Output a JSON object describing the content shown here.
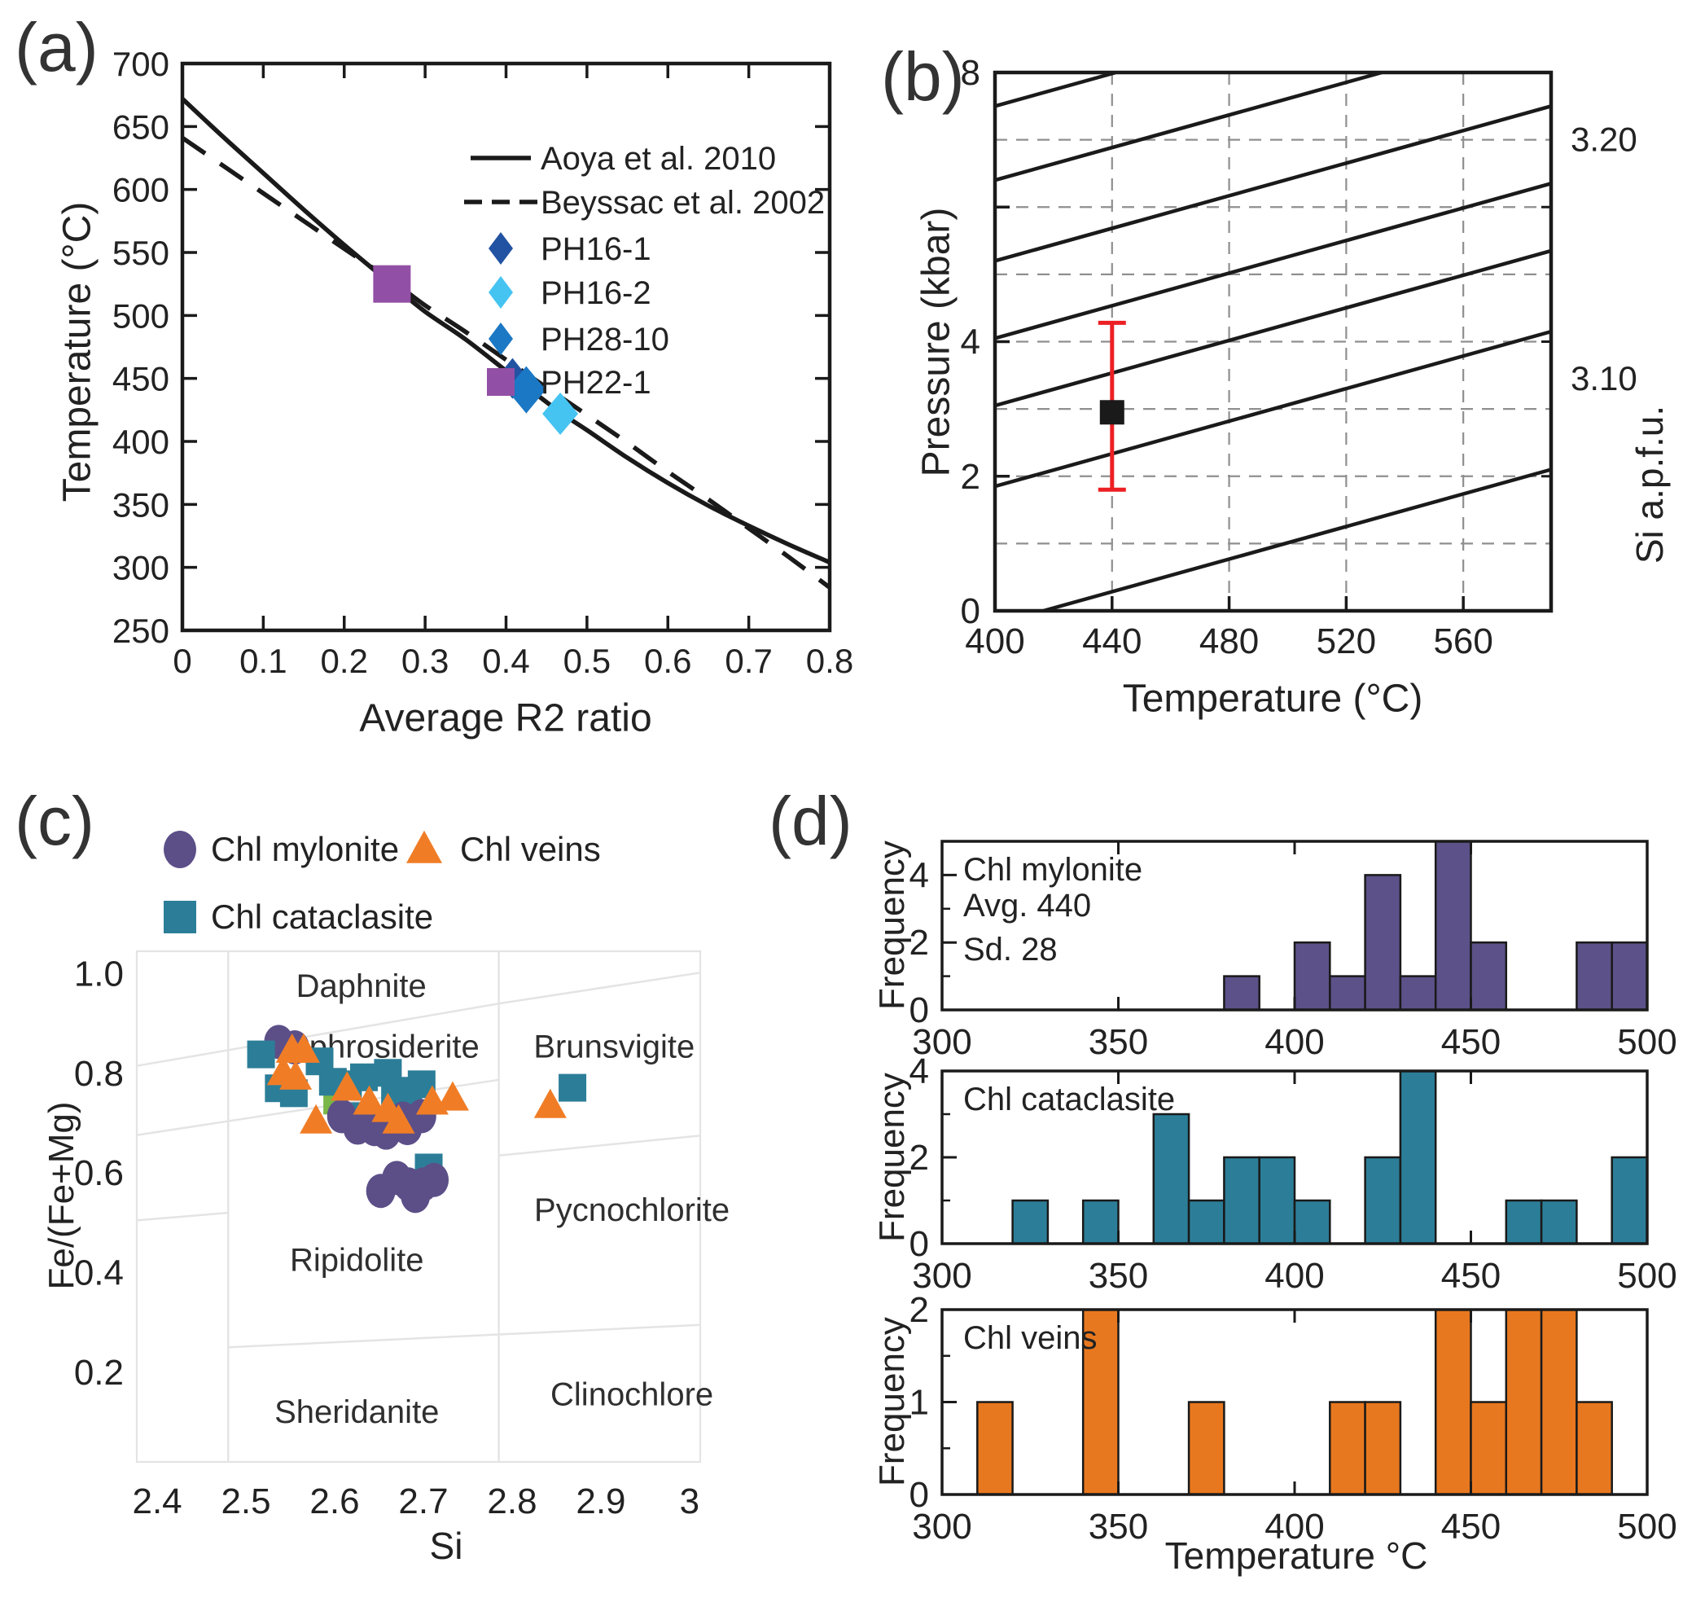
{
  "panel_tags": {
    "a": "(a)",
    "b": "(b)",
    "c": "(c)",
    "d": "(d)"
  },
  "colors": {
    "line_black": "#1a1a1a",
    "grid_gray": "#8f8f8f",
    "boundary_gray": "#e4e4e4",
    "error_red": "#ec2024",
    "mylonite_purple": "#5c4f88",
    "cataclasite_teal": "#2c7e98",
    "veins_orange": "#f07d26",
    "ph16_1_navy": "#2253a2",
    "ph16_2_cyan": "#45c4f2",
    "ph28_10_blue": "#1b78c5",
    "ph22_1_purple": "#9150a5"
  },
  "chart_data": [
    {
      "id": "a",
      "type": "line",
      "xlabel": "Average R2 ratio",
      "ylabel": "Temperature (°C)",
      "xlim": [
        0,
        0.8
      ],
      "ylim": [
        250,
        700
      ],
      "xticks": [
        0,
        0.1,
        0.2,
        0.3,
        0.4,
        0.5,
        0.6,
        0.7,
        0.8
      ],
      "yticks": [
        250,
        300,
        350,
        400,
        450,
        500,
        550,
        600,
        650,
        700
      ],
      "legend": [
        {
          "marker": "line-solid",
          "label": "Aoya et al. 2010"
        },
        {
          "marker": "line-dashed",
          "label": "Beyssac et al. 2002"
        },
        {
          "marker": "diamond",
          "label": "PH16-1",
          "color": "#2253a2"
        },
        {
          "marker": "diamond",
          "label": "PH16-2",
          "color": "#45c4f2"
        },
        {
          "marker": "diamond",
          "label": "PH28-10",
          "color": "#1b78c5"
        },
        {
          "marker": "square",
          "label": "PH22-1",
          "color": "#9150a5"
        }
      ],
      "series": [
        {
          "name": "Aoya et al. 2010",
          "style": "solid",
          "color": "#1a1a1a",
          "points": [
            [
              0,
              672
            ],
            [
              0.05,
              642
            ],
            [
              0.1,
              613
            ],
            [
              0.15,
              584
            ],
            [
              0.2,
              556
            ],
            [
              0.26,
              524
            ],
            [
              0.3,
              503
            ],
            [
              0.35,
              481
            ],
            [
              0.41,
              451
            ],
            [
              0.465,
              424
            ],
            [
              0.5,
              409
            ],
            [
              0.55,
              387
            ],
            [
              0.6,
              367
            ],
            [
              0.65,
              349
            ],
            [
              0.7,
              333
            ],
            [
              0.75,
              318
            ],
            [
              0.8,
              304
            ]
          ]
        },
        {
          "name": "Beyssac et al. 2002",
          "style": "dashed",
          "color": "#1a1a1a",
          "points": [
            [
              0,
              641
            ],
            [
              0.05,
              619
            ],
            [
              0.1,
              597
            ],
            [
              0.15,
              575
            ],
            [
              0.2,
              553
            ],
            [
              0.26,
              527
            ],
            [
              0.3,
              508
            ],
            [
              0.35,
              487
            ],
            [
              0.42,
              456
            ],
            [
              0.5,
              421
            ],
            [
              0.55,
              399
            ],
            [
              0.6,
              376
            ],
            [
              0.65,
              354
            ],
            [
              0.7,
              331
            ],
            [
              0.75,
              308
            ],
            [
              0.8,
              284
            ]
          ]
        }
      ],
      "points": [
        {
          "sample": "PH22-1",
          "marker": "square",
          "color": "#9150a5",
          "x": 0.259,
          "y": 525,
          "w": 46,
          "h": 46
        },
        {
          "sample": "PH16-1",
          "marker": "diamond",
          "color": "#2253a2",
          "x": 0.408,
          "y": 450,
          "w": 40,
          "h": 50
        },
        {
          "sample": "PH28-10",
          "marker": "diamond",
          "color": "#1b78c5",
          "x": 0.425,
          "y": 441,
          "w": 48,
          "h": 58
        },
        {
          "sample": "PH16-2",
          "marker": "diamond",
          "color": "#45c4f2",
          "x": 0.467,
          "y": 422,
          "w": 44,
          "h": 52
        }
      ]
    },
    {
      "id": "b",
      "type": "isopleth",
      "xlabel": "Temperature (°C)",
      "ylabel": "Pressure (kbar)",
      "y2label": "Si a.p.f.u.",
      "xlim": [
        400,
        590
      ],
      "ylim": [
        0,
        8
      ],
      "xticks": [
        400,
        440,
        480,
        520,
        560
      ],
      "yticks": [
        0,
        2,
        4,
        6,
        8
      ],
      "ytick_labels": [
        "0",
        "2",
        "4",
        "",
        "8"
      ],
      "grid": {
        "x": [
          440,
          480,
          520,
          560
        ],
        "y": [
          1,
          2,
          3,
          4,
          5,
          6,
          7
        ]
      },
      "isopleths": {
        "left_intercepts": [
          7.5,
          6.4,
          5.2,
          4.05,
          3.05,
          1.85,
          -0.2
        ],
        "rise_per_width": 2.3
      },
      "right_labels": [
        {
          "text": "3.20",
          "p": 7.0
        },
        {
          "text": "3.10",
          "p": 3.45
        }
      ],
      "point": {
        "T": 440,
        "P": 2.95,
        "err_low": 1.8,
        "err_high": 4.28,
        "color": "#1a1a1a",
        "err_color": "#ec2024"
      }
    },
    {
      "id": "c",
      "type": "scatter",
      "xlabel": "Si",
      "ylabel": "Fe/(Fe+Mg)",
      "xlim": [
        2.377,
        3.012
      ],
      "ylim": [
        0.02,
        1.045
      ],
      "xticks": [
        2.4,
        2.5,
        2.6,
        2.7,
        2.8,
        2.9,
        3
      ],
      "yticks": [
        {
          "v": 1.0,
          "label": "1.0"
        },
        {
          "v": 0.8,
          "label": "0.8"
        },
        {
          "v": 0.6,
          "label": "0.6"
        },
        {
          "v": 0.4,
          "label": "0.4"
        },
        {
          "v": 0.2,
          "label": "0.2"
        }
      ],
      "fields": [
        {
          "name": "Daphnite",
          "x": 2.63,
          "y": 0.975
        },
        {
          "name": "Aphrosiderite",
          "x": 2.655,
          "y": 0.853
        },
        {
          "name": "Brunsvigite",
          "x": 2.915,
          "y": 0.853
        },
        {
          "name": "Ripidolite",
          "x": 2.625,
          "y": 0.425
        },
        {
          "name": "Pycnochlorite",
          "x": 2.935,
          "y": 0.525
        },
        {
          "name": "Sheridanite",
          "x": 2.625,
          "y": 0.12
        },
        {
          "name": "Clinochlore",
          "x": 2.935,
          "y": 0.155
        }
      ],
      "boundaries": {
        "vertical": [
          2.48,
          2.785
        ],
        "segments": [
          [
            [
              2.377,
              0.815
            ],
            [
              2.785,
              0.94
            ],
            [
              3.012,
              1.002
            ]
          ],
          [
            [
              2.377,
              0.676
            ],
            [
              2.785,
              0.787
            ]
          ],
          [
            [
              2.785,
              0.635
            ],
            [
              3.012,
              0.675
            ]
          ],
          [
            [
              2.48,
              0.25
            ],
            [
              3.012,
              0.295
            ]
          ],
          [
            [
              2.377,
              0.505
            ],
            [
              2.48,
              0.52
            ]
          ]
        ]
      },
      "legend": [
        {
          "marker": "circle",
          "label": "Chl mylonite",
          "color": "#5c4f88"
        },
        {
          "marker": "triangle",
          "label": "Chl veins",
          "color": "#f07d26"
        },
        {
          "marker": "square",
          "label": "Chl cataclasite",
          "color": "#2c7e98"
        }
      ],
      "series": [
        {
          "name": "Chl mylonite",
          "marker": "circle",
          "color": "#5c4f88",
          "points": [
            [
              2.537,
              0.863
            ],
            [
              2.555,
              0.852
            ],
            [
              2.608,
              0.714
            ],
            [
              2.626,
              0.691
            ],
            [
              2.645,
              0.688
            ],
            [
              2.677,
              0.709
            ],
            [
              2.682,
              0.69
            ],
            [
              2.698,
              0.714
            ],
            [
              2.658,
              0.681
            ],
            [
              2.652,
              0.564
            ],
            [
              2.67,
              0.59
            ],
            [
              2.683,
              0.577
            ],
            [
              2.691,
              0.554
            ],
            [
              2.7,
              0.577
            ],
            [
              2.712,
              0.586
            ]
          ]
        },
        {
          "name": "Chl cataclasite",
          "marker": "square",
          "color": "#2c7e98",
          "points": [
            [
              2.517,
              0.838
            ],
            [
              2.583,
              0.824
            ],
            [
              2.598,
              0.783
            ],
            [
              2.537,
              0.77
            ],
            [
              2.554,
              0.76
            ],
            [
              2.615,
              0.778
            ],
            [
              2.633,
              0.792
            ],
            [
              2.66,
              0.801
            ],
            [
              2.668,
              0.765
            ],
            [
              2.698,
              0.778
            ],
            [
              2.683,
              0.75
            ],
            [
              2.633,
              0.714
            ],
            [
              2.706,
              0.611
            ],
            [
              2.868,
              0.771
            ]
          ]
        },
        {
          "name": "Chl veins",
          "marker": "triangle",
          "color": "#f07d26",
          "points": [
            [
              2.552,
              0.846
            ],
            [
              2.565,
              0.846
            ],
            [
              2.542,
              0.801
            ],
            [
              2.556,
              0.792
            ],
            [
              2.614,
              0.77
            ],
            [
              2.639,
              0.742
            ],
            [
              2.66,
              0.727
            ],
            [
              2.579,
              0.704
            ],
            [
              2.71,
              0.742
            ],
            [
              2.733,
              0.75
            ],
            [
              2.672,
              0.704
            ],
            [
              2.843,
              0.735
            ]
          ]
        }
      ],
      "extra_point": {
        "marker": "square",
        "color": "#7ab648",
        "x": 2.601,
        "y": 0.742
      }
    },
    {
      "id": "d1",
      "type": "histogram",
      "group": "Chl mylonite",
      "annotations": [
        "Chl mylonite",
        "Avg.  440",
        "Sd. 28"
      ],
      "color": "#5c5189",
      "bins": {
        "start": 300,
        "width": 10,
        "counts": [
          0,
          0,
          0,
          0,
          0,
          0,
          0,
          0,
          1,
          0,
          2,
          1,
          4,
          1,
          5,
          2,
          0,
          0,
          2,
          2
        ]
      },
      "xlim": [
        300,
        500
      ],
      "ylim": [
        0,
        5
      ],
      "xticks": [
        300,
        350,
        400,
        450,
        500
      ],
      "yticks": [
        0,
        2,
        4
      ],
      "yminor": [
        1,
        3
      ],
      "ylabel": "Frequency"
    },
    {
      "id": "d2",
      "type": "histogram",
      "group": "Chl cataclasite",
      "annotations": [
        "Chl cataclasite"
      ],
      "color": "#2c7e98",
      "bins": {
        "start": 300,
        "width": 10,
        "counts": [
          0,
          0,
          1,
          0,
          1,
          0,
          3,
          1,
          2,
          2,
          1,
          0,
          2,
          4,
          0,
          0,
          1,
          1,
          0,
          2
        ]
      },
      "xlim": [
        300,
        500
      ],
      "ylim": [
        0,
        4
      ],
      "xticks": [
        300,
        350,
        400,
        450,
        500
      ],
      "yticks": [
        0,
        2,
        4
      ],
      "yminor": [
        1,
        3
      ],
      "ylabel": "Frequency"
    },
    {
      "id": "d3",
      "type": "histogram",
      "group": "Chl veins",
      "annotations": [
        "Chl veins"
      ],
      "color": "#e8781f",
      "bins": {
        "start": 300,
        "width": 10,
        "counts": [
          0,
          1,
          0,
          0,
          2,
          0,
          0,
          1,
          0,
          0,
          0,
          1,
          1,
          0,
          2,
          1,
          2,
          2,
          1,
          0
        ]
      },
      "xlim": [
        300,
        500
      ],
      "ylim": [
        0,
        2
      ],
      "xticks": [
        300,
        350,
        400,
        450,
        500
      ],
      "yticks": [
        0,
        1,
        2
      ],
      "yminor": [
        0.5,
        1.5
      ],
      "xlabel": "Temperature °C",
      "ylabel": "Frequency"
    }
  ]
}
